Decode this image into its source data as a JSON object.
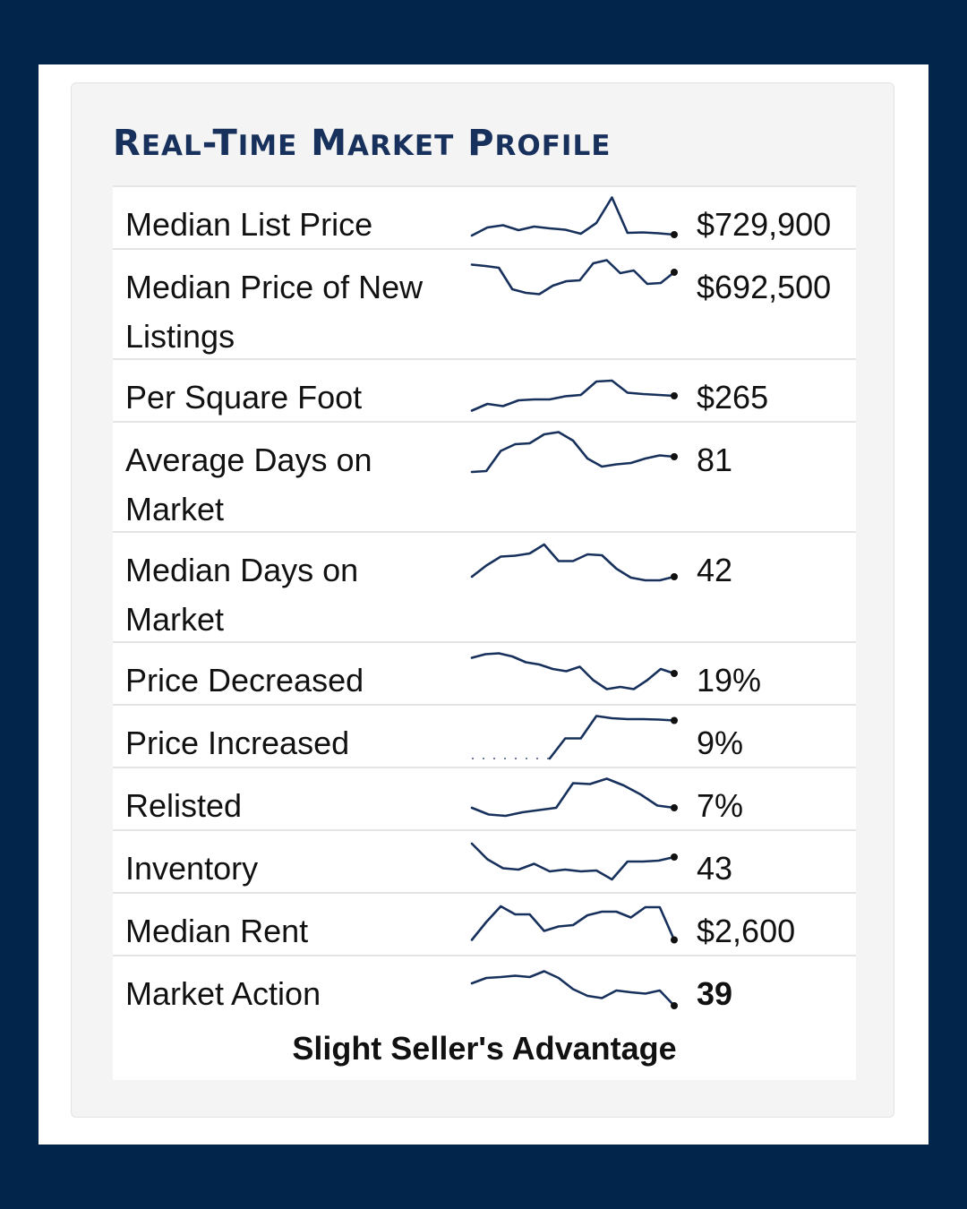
{
  "title": {
    "parts": [
      {
        "big": "R",
        "small": "EAL"
      },
      {
        "big": "-T",
        "small": "IME"
      },
      {
        "big": " M",
        "small": "ARKET"
      },
      {
        "big": " P",
        "small": "ROFILE"
      }
    ]
  },
  "colors": {
    "page_background": "#02254b",
    "frame": "#ffffff",
    "card": "#f4f4f4",
    "title": "#17315c",
    "sparkline": "#17315c"
  },
  "rows": [
    {
      "label_lines": [
        "Median List Price"
      ],
      "value": "$729,900",
      "bold": false,
      "trend": [
        0.1,
        0.28,
        0.33,
        0.22,
        0.3,
        0.26,
        0.23,
        0.14,
        0.38,
        0.95,
        0.16,
        0.17,
        0.15,
        0.12
      ]
    },
    {
      "label_lines": [
        "Median Price of New",
        "Listings"
      ],
      "value": "$692,500",
      "bold": false,
      "trend": [
        0.85,
        0.82,
        0.78,
        0.3,
        0.22,
        0.19,
        0.38,
        0.48,
        0.5,
        0.88,
        0.95,
        0.66,
        0.72,
        0.42,
        0.44,
        0.68
      ]
    },
    {
      "label_lines": [
        "Per Square Foot"
      ],
      "value": "$265",
      "bold": false,
      "trend": [
        0.05,
        0.2,
        0.15,
        0.28,
        0.3,
        0.3,
        0.37,
        0.4,
        0.7,
        0.72,
        0.45,
        0.42,
        0.4,
        0.38
      ]
    },
    {
      "label_lines": [
        "Average Days on",
        "Market"
      ],
      "value": "81",
      "bold": false,
      "trend": [
        0.08,
        0.1,
        0.55,
        0.7,
        0.72,
        0.92,
        0.97,
        0.78,
        0.38,
        0.2,
        0.25,
        0.28,
        0.38,
        0.45,
        0.42
      ]
    },
    {
      "label_lines": [
        "Median Days on",
        "Market"
      ],
      "value": "42",
      "bold": false,
      "trend": [
        0.2,
        0.45,
        0.65,
        0.67,
        0.72,
        0.92,
        0.55,
        0.55,
        0.7,
        0.68,
        0.38,
        0.18,
        0.12,
        0.12,
        0.2
      ]
    },
    {
      "label_lines": [
        "Price Decreased"
      ],
      "value": "19%",
      "bold": false,
      "trend": [
        0.85,
        0.93,
        0.95,
        0.88,
        0.75,
        0.7,
        0.6,
        0.55,
        0.65,
        0.35,
        0.15,
        0.2,
        0.15,
        0.35,
        0.6,
        0.5
      ]
    },
    {
      "label_lines": [
        "Price Increased"
      ],
      "value": "9%",
      "bold": false,
      "dotted_start": 5,
      "trend": [
        0,
        0,
        0,
        0,
        0,
        0,
        0.45,
        0.45,
        0.95,
        0.9,
        0.88,
        0.88,
        0.87,
        0.85
      ]
    },
    {
      "label_lines": [
        "Relisted"
      ],
      "value": "7%",
      "bold": false,
      "trend": [
        0.3,
        0.15,
        0.12,
        0.2,
        0.25,
        0.3,
        0.85,
        0.83,
        0.95,
        0.8,
        0.6,
        0.35,
        0.3
      ]
    },
    {
      "label_lines": [
        "Inventory"
      ],
      "value": "43",
      "bold": false,
      "trend": [
        0.9,
        0.55,
        0.35,
        0.32,
        0.45,
        0.28,
        0.32,
        0.28,
        0.3,
        0.1,
        0.5,
        0.5,
        0.52,
        0.6
      ]
    },
    {
      "label_lines": [
        "Median Rent"
      ],
      "value": "$2,600",
      "bold": false,
      "trend": [
        0.15,
        0.55,
        0.9,
        0.72,
        0.72,
        0.35,
        0.45,
        0.48,
        0.7,
        0.78,
        0.78,
        0.65,
        0.88,
        0.88,
        0.15
      ]
    },
    {
      "label_lines": [
        "Market Action"
      ],
      "value": "39",
      "bold": true,
      "trend": [
        0.58,
        0.7,
        0.72,
        0.75,
        0.72,
        0.85,
        0.7,
        0.45,
        0.3,
        0.25,
        0.42,
        0.38,
        0.35,
        0.42,
        0.08
      ]
    }
  ],
  "footer": "Slight Seller's Advantage"
}
